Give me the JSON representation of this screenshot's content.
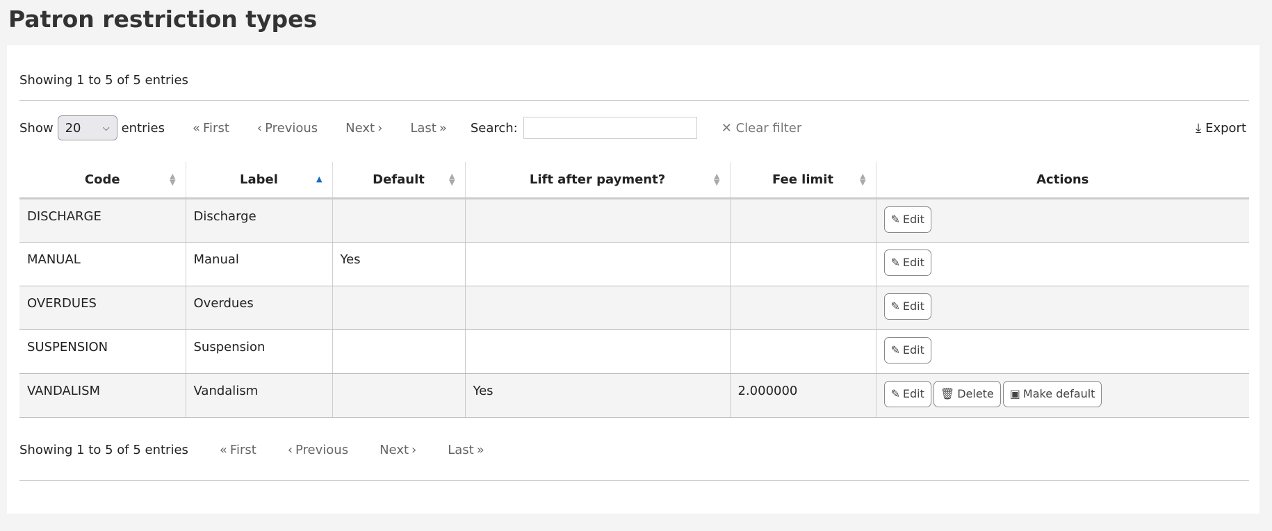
{
  "title": "Patron restriction types",
  "info": "Showing 1 to 5 of 5 entries",
  "toolbar": {
    "show": "Show",
    "page_size": "20",
    "entries": "entries",
    "first": "First",
    "previous": "Previous",
    "next": "Next",
    "last": "Last",
    "search_label": "Search:",
    "search_value": "",
    "clear": "Clear filter",
    "export": "Export"
  },
  "columns": [
    "Code",
    "Label",
    "Default",
    "Lift after payment?",
    "Fee limit",
    "Actions"
  ],
  "sort": {
    "column": "Label",
    "direction": "ascending"
  },
  "rows": [
    {
      "code": "DISCHARGE",
      "label": "Discharge",
      "default": "",
      "lift": "",
      "fee": "",
      "actions": [
        "Edit"
      ]
    },
    {
      "code": "MANUAL",
      "label": "Manual",
      "default": "Yes",
      "lift": "",
      "fee": "",
      "actions": [
        "Edit"
      ]
    },
    {
      "code": "OVERDUES",
      "label": "Overdues",
      "default": "",
      "lift": "",
      "fee": "",
      "actions": [
        "Edit"
      ]
    },
    {
      "code": "SUSPENSION",
      "label": "Suspension",
      "default": "",
      "lift": "",
      "fee": "",
      "actions": [
        "Edit"
      ]
    },
    {
      "code": "VANDALISM",
      "label": "Vandalism",
      "default": "",
      "lift": "Yes",
      "fee": "2.000000",
      "actions": [
        "Edit",
        "Delete",
        "Make default"
      ]
    }
  ],
  "colors": {
    "sort_active": "#1769c2",
    "row_stripe": "#f3f4f3"
  }
}
